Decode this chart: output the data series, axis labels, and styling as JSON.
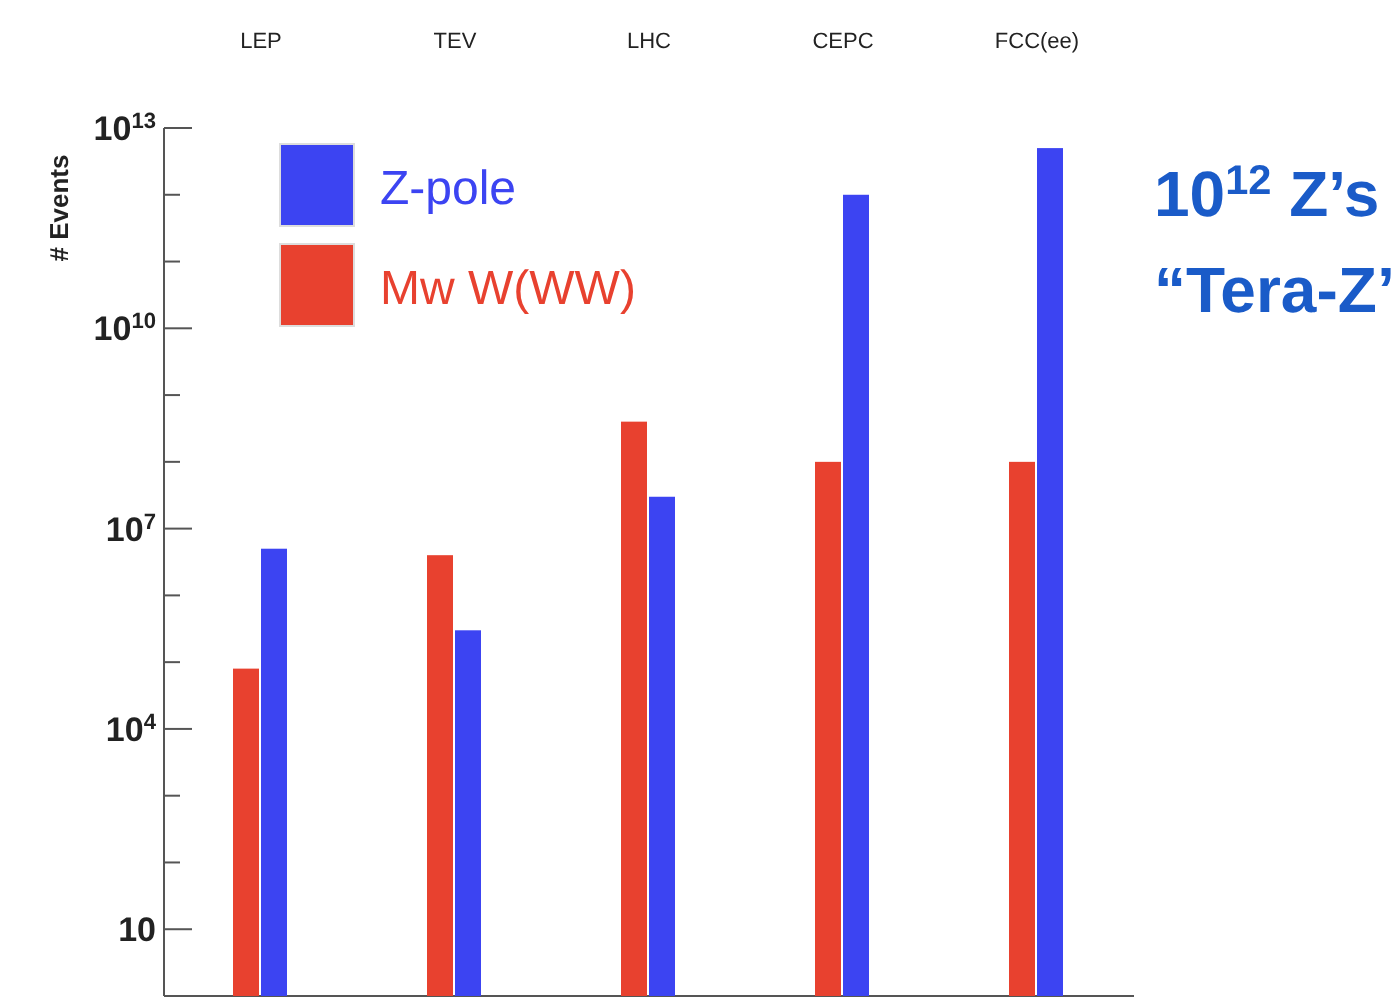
{
  "chart_data": {
    "type": "bar",
    "ylabel": "# Events",
    "categories": [
      "LEP",
      "TEV",
      "LHC",
      "CEPC",
      "FCC(ee)"
    ],
    "series": [
      {
        "name": "Mw W(WW)",
        "color": "#e8412f",
        "values": [
          80000,
          4000000,
          400000000,
          100000000,
          100000000
        ]
      },
      {
        "name": "Z-pole",
        "color": "#3c44f2",
        "values": [
          5000000,
          300000,
          30000000,
          1000000000000,
          5000000000000
        ]
      }
    ],
    "log": "y",
    "ylim": [
      1,
      10000000000000
    ],
    "yticks": [
      {
        "value": 10,
        "label": "10"
      },
      {
        "value": 100,
        "label": null
      },
      {
        "value": 1000,
        "label": null
      },
      {
        "value": 10000,
        "label": "10$^{4}$"
      },
      {
        "value": 100000,
        "label": null
      },
      {
        "value": 1000000,
        "label": null
      },
      {
        "value": 10000000,
        "label": "10$^{7}$"
      },
      {
        "value": 100000000,
        "label": null
      },
      {
        "value": 1000000000,
        "label": null
      },
      {
        "value": 10000000000,
        "label": "10$^{10}$"
      },
      {
        "value": 100000000000,
        "label": null
      },
      {
        "value": 1000000000000,
        "label": null
      },
      {
        "value": 10000000000000,
        "label": "10$^{13}$"
      }
    ],
    "legend": "top left",
    "annotations": [
      "10$^{12}$ Z’s",
      "“Tera-Z”"
    ]
  }
}
